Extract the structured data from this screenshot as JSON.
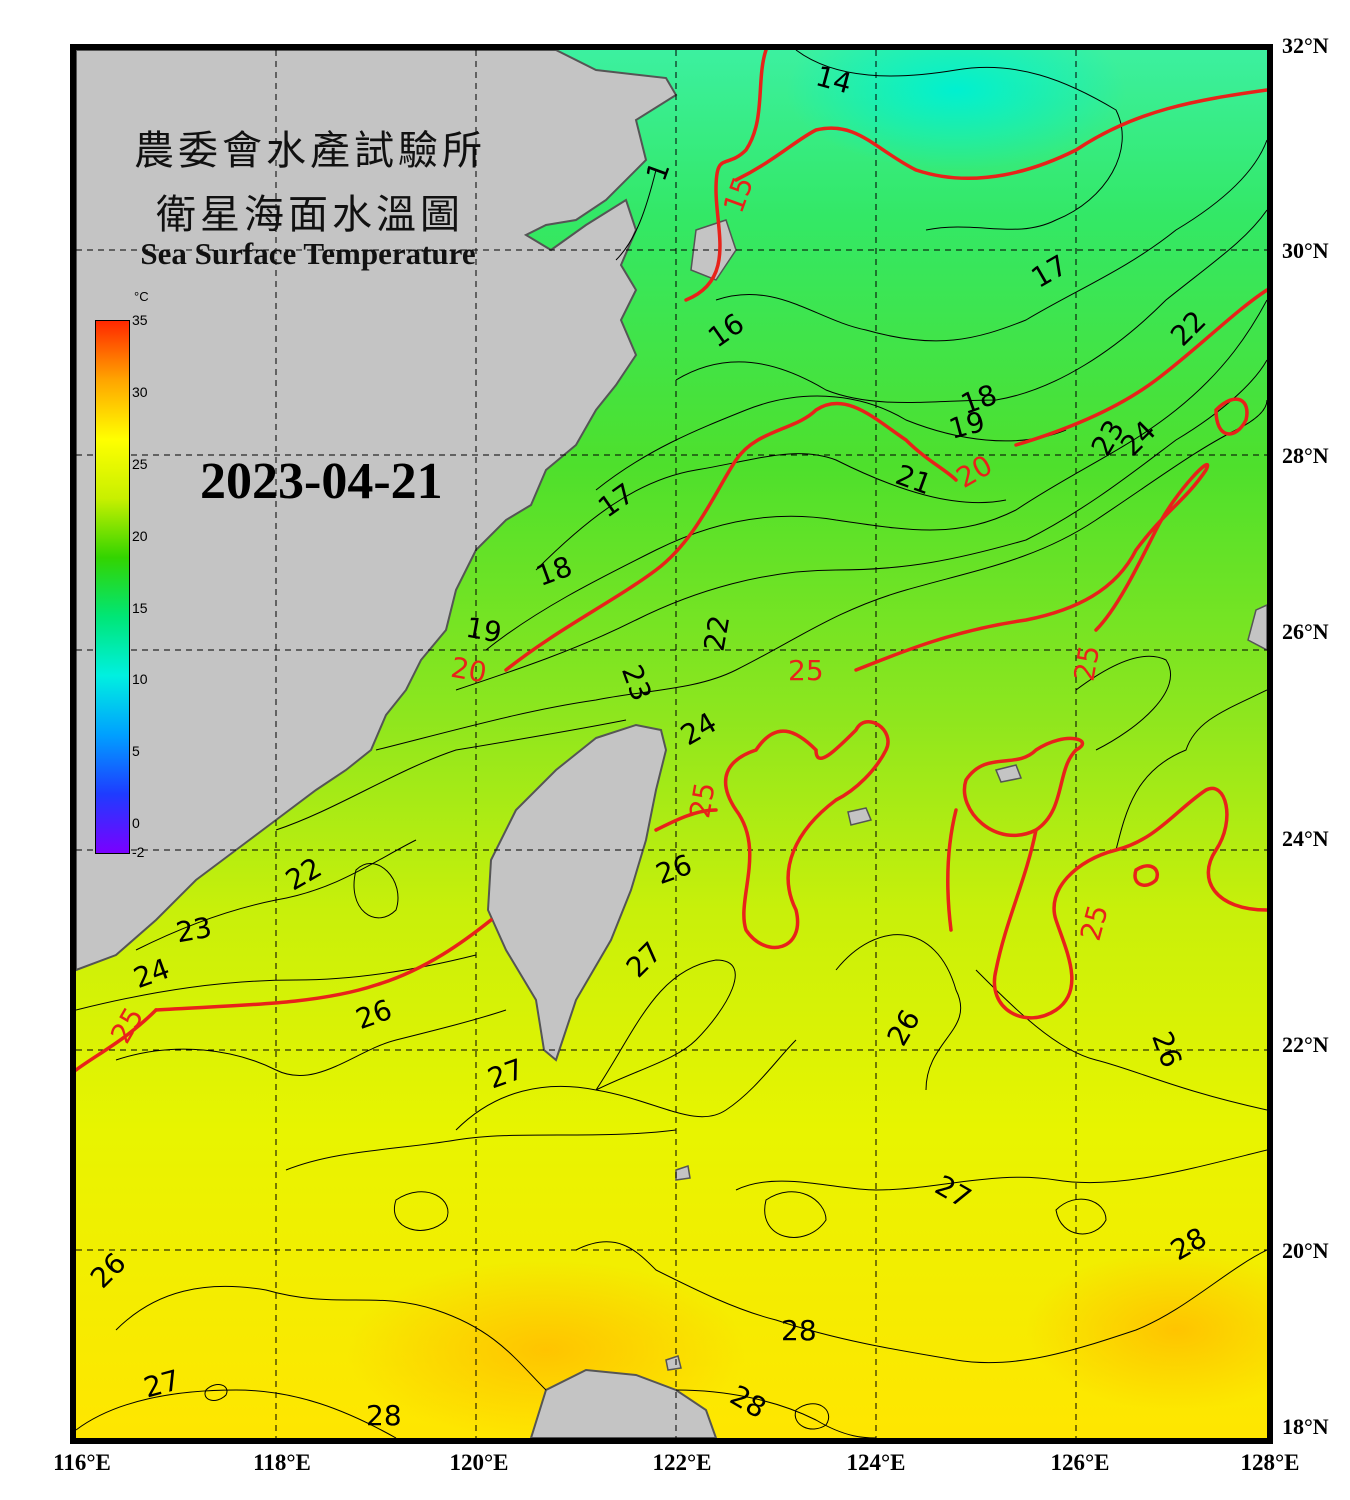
{
  "title": {
    "line1": "農委會水產試驗所",
    "line2": "衛星海面水溫圖",
    "english": "Sea Surface Temperature"
  },
  "date": "2023-04-21",
  "colorbar": {
    "unit": "°C",
    "ticks": [
      "35",
      "30",
      "25",
      "20",
      "15",
      "10",
      "5",
      "0",
      "-2"
    ],
    "min": -2,
    "max": 35,
    "colors": [
      "#7a00ff",
      "#1e3cff",
      "#00a0ff",
      "#00f0e0",
      "#00e676",
      "#33d400",
      "#c8f000",
      "#ffff00",
      "#ffa500",
      "#ff2800"
    ]
  },
  "latitude_labels": [
    "32°N",
    "30°N",
    "28°N",
    "26°N",
    "24°N",
    "22°N",
    "20°N",
    "18°N"
  ],
  "longitude_labels": [
    "116°E",
    "118°E",
    "120°E",
    "122°E",
    "124°E",
    "126°E",
    "128°E"
  ],
  "colors": {
    "land": "#c4c4c4",
    "coast": "#555555",
    "red_isotherm": "#e8221a",
    "black_isotherm": "#000000",
    "grid": "#000000"
  },
  "isotherm_labels": [
    {
      "text": "14",
      "red": false
    },
    {
      "text": "15",
      "red": true
    },
    {
      "text": "16",
      "red": false
    },
    {
      "text": "17",
      "red": false
    },
    {
      "text": "17",
      "red": false
    },
    {
      "text": "18",
      "red": false
    },
    {
      "text": "18",
      "red": false
    },
    {
      "text": "19",
      "red": false
    },
    {
      "text": "19",
      "red": false
    },
    {
      "text": "20",
      "red": true
    },
    {
      "text": "20",
      "red": true
    },
    {
      "text": "21",
      "red": false
    },
    {
      "text": "22",
      "red": false
    },
    {
      "text": "22",
      "red": false
    },
    {
      "text": "22",
      "red": false
    },
    {
      "text": "23",
      "red": false
    },
    {
      "text": "23",
      "red": false
    },
    {
      "text": "23",
      "red": false
    },
    {
      "text": "24",
      "red": false
    },
    {
      "text": "24",
      "red": false
    },
    {
      "text": "24",
      "red": false
    },
    {
      "text": "25",
      "red": true
    },
    {
      "text": "25",
      "red": true
    },
    {
      "text": "25",
      "red": true
    },
    {
      "text": "25",
      "red": true
    },
    {
      "text": "25",
      "red": true
    },
    {
      "text": "26",
      "red": false
    },
    {
      "text": "26",
      "red": false
    },
    {
      "text": "26",
      "red": false
    },
    {
      "text": "26",
      "red": false
    },
    {
      "text": "26",
      "red": false
    },
    {
      "text": "27",
      "red": false
    },
    {
      "text": "27",
      "red": false
    },
    {
      "text": "27",
      "red": false
    },
    {
      "text": "27",
      "red": false
    },
    {
      "text": "28",
      "red": false
    },
    {
      "text": "28",
      "red": false
    },
    {
      "text": "28",
      "red": false
    },
    {
      "text": "28",
      "red": false
    },
    {
      "text": "1",
      "red": false
    }
  ]
}
